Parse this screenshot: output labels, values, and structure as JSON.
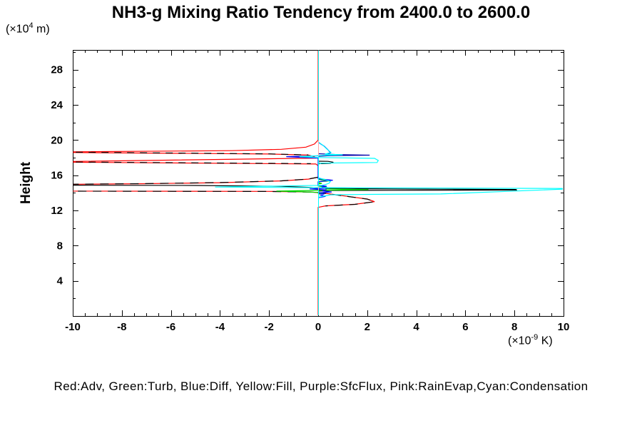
{
  "header": {
    "title": "NH3-g Mixing Ratio Tendency from 2400.0 to 2600.0"
  },
  "y_axis_unit": {
    "prefix": "(×10",
    "sup": "4",
    "suffix": " m)"
  },
  "x_axis_unit": {
    "prefix": "(×10",
    "sup": "-9",
    "suffix": " K)"
  },
  "legend": {
    "text": "Red:Adv, Green:Turb, Blue:Diff, Yellow:Fill, Purple:SfcFlux, Pink:RainEvap,Cyan:Condensation",
    "entries": [
      {
        "color_name": "Red",
        "color": "#ff0000",
        "label": "Adv"
      },
      {
        "color_name": "Green",
        "color": "#00d800",
        "label": "Turb"
      },
      {
        "color_name": "Blue",
        "color": "#0000ff",
        "label": "Diff"
      },
      {
        "color_name": "Yellow",
        "color": "#ffff00",
        "label": "Fill"
      },
      {
        "color_name": "Purple",
        "color": "#a000c8",
        "label": "SfcFlux"
      },
      {
        "color_name": "Pink",
        "color": "#ffa8a8",
        "label": "RainEvap"
      },
      {
        "color_name": "Cyan",
        "color": "#00ffff",
        "label": "Condensation"
      }
    ]
  },
  "chart_data": {
    "type": "line",
    "title": "NH3-g Mixing Ratio Tendency from 2400.0 to 2600.0",
    "xlabel": "(x10^-9 K)",
    "ylabel": "Height (x10^4 m)",
    "x_axis": {
      "min": -10,
      "max": 10,
      "minor_step": 0.5,
      "major_tick_values": [
        -10,
        -8,
        -6,
        -4,
        -2,
        0,
        2,
        4,
        6,
        8,
        10
      ],
      "tick_labels": [
        "-10",
        "-8",
        "-6",
        "-4",
        "-2",
        "0",
        "2",
        "4",
        "6",
        "8",
        "10"
      ]
    },
    "y_axis": {
      "min": 0,
      "max": 30.25,
      "minor_step": 2,
      "label": "Height",
      "major_tick_values": [
        4,
        8,
        12,
        16,
        20,
        24,
        28
      ],
      "tick_labels": [
        "4",
        "8",
        "12",
        "16",
        "20",
        "24",
        "28"
      ]
    },
    "zero_line": {
      "x": 0,
      "color": "#00ffff"
    },
    "grid": false,
    "series": [
      {
        "name": "adv-red",
        "color": "#ff0000",
        "points": [
          [
            0,
            30.2
          ],
          [
            0,
            20.0
          ],
          [
            -0.15,
            19.55
          ],
          [
            -0.5,
            19.2
          ],
          [
            -1.5,
            18.95
          ],
          [
            -3.5,
            18.8
          ],
          [
            -10.4,
            18.66
          ],
          [
            -10.4,
            18.6
          ],
          [
            -2.0,
            18.42
          ],
          [
            -0.4,
            18.3
          ],
          [
            -0.15,
            18.1
          ],
          [
            -0.1,
            17.95
          ],
          [
            -10.4,
            17.56
          ],
          [
            -10.4,
            17.49
          ],
          [
            -0.1,
            17.28
          ],
          [
            0,
            17.1
          ],
          [
            0,
            15.78
          ],
          [
            -0.4,
            15.56
          ],
          [
            -1.5,
            15.36
          ],
          [
            -4,
            15.16
          ],
          [
            -7,
            15.04
          ],
          [
            -10.4,
            14.97
          ],
          [
            -10.4,
            14.2
          ],
          [
            -2,
            14.17
          ],
          [
            -0.3,
            14.1
          ],
          [
            0.3,
            13.95
          ],
          [
            1.2,
            13.6
          ],
          [
            2.0,
            13.3
          ],
          [
            2.3,
            13.0
          ],
          [
            1.5,
            12.7
          ],
          [
            0.3,
            12.52
          ],
          [
            0,
            12.35
          ],
          [
            0,
            0.1
          ]
        ]
      },
      {
        "name": "net-black-dash-a",
        "color": "#000000",
        "dash": "10 8",
        "points": [
          [
            -10.4,
            18.64
          ],
          [
            -2.0,
            18.43
          ],
          [
            -0.4,
            18.31
          ]
        ]
      },
      {
        "name": "net-black-dash-b",
        "color": "#000000",
        "dash": "10 8",
        "points": [
          [
            -10.4,
            17.52
          ],
          [
            -0.3,
            17.32
          ]
        ]
      },
      {
        "name": "net-black-dash-c",
        "color": "#000000",
        "dash": "12 9",
        "points": [
          [
            0,
            15.78
          ],
          [
            -0.4,
            15.57
          ],
          [
            -1.5,
            15.37
          ],
          [
            -4,
            15.17
          ],
          [
            -7,
            15.05
          ],
          [
            -10.4,
            14.98
          ]
        ]
      },
      {
        "name": "net-black-dash-d",
        "color": "#000000",
        "dash": "12 9",
        "points": [
          [
            -10.4,
            14.19
          ],
          [
            -2,
            14.16
          ],
          [
            -0.3,
            14.09
          ],
          [
            0.3,
            13.94
          ],
          [
            1.2,
            13.59
          ],
          [
            2.0,
            13.29
          ],
          [
            2.3,
            12.99
          ],
          [
            1.5,
            12.69
          ],
          [
            0.3,
            12.51
          ]
        ]
      },
      {
        "name": "net-black-left",
        "color": "#000000",
        "points": [
          [
            -10.4,
            14.87
          ],
          [
            -5,
            14.84
          ],
          [
            -1.5,
            14.74
          ],
          [
            -0.3,
            14.62
          ],
          [
            0,
            14.55
          ]
        ]
      },
      {
        "name": "net-black-spike",
        "color": "#000000",
        "points": [
          [
            0,
            14.55
          ],
          [
            2,
            14.47
          ],
          [
            5,
            14.42
          ],
          [
            8.05,
            14.39
          ],
          [
            8.1,
            14.32
          ],
          [
            3,
            14.29
          ],
          [
            0.5,
            14.27
          ],
          [
            0,
            14.2
          ]
        ]
      },
      {
        "name": "net-black-loop",
        "color": "#000000",
        "points": [
          [
            0,
            17.6
          ],
          [
            0.4,
            17.58
          ],
          [
            0.62,
            17.48
          ],
          [
            0.5,
            17.36
          ],
          [
            0.15,
            17.32
          ],
          [
            0,
            17.38
          ]
        ]
      },
      {
        "name": "turb-green",
        "color": "#00d800",
        "points": [
          [
            0,
            15.52
          ],
          [
            0.35,
            15.44
          ],
          [
            0.5,
            15.37
          ],
          [
            0.2,
            15.3
          ],
          [
            0,
            15.26
          ],
          [
            0,
            15.15
          ],
          [
            0.15,
            15.08
          ],
          [
            0,
            15.0
          ],
          [
            0,
            14.78
          ],
          [
            0.4,
            14.6
          ],
          [
            0.3,
            14.45
          ],
          [
            2.05,
            14.36
          ],
          [
            0.5,
            14.3
          ],
          [
            -0.2,
            14.27
          ],
          [
            -1.7,
            14.2
          ],
          [
            -0.6,
            14.12
          ],
          [
            0,
            14.05
          ],
          [
            0.2,
            13.95
          ],
          [
            0,
            13.85
          ]
        ]
      },
      {
        "name": "diff-blue",
        "color": "#0000ff",
        "points": [
          [
            0,
            19.75
          ],
          [
            0.25,
            19.3
          ],
          [
            0.4,
            18.9
          ],
          [
            0.5,
            18.55
          ],
          [
            0.3,
            18.35
          ],
          [
            1.35,
            18.3
          ],
          [
            0.2,
            18.22
          ],
          [
            -1.3,
            18.12
          ],
          [
            -0.6,
            18.02
          ],
          [
            0,
            17.95
          ],
          [
            0,
            15.6
          ],
          [
            0.3,
            15.52
          ],
          [
            0.6,
            15.43
          ],
          [
            0.15,
            15.33
          ],
          [
            0,
            15.25
          ],
          [
            0,
            14.85
          ],
          [
            0.35,
            14.75
          ],
          [
            0.15,
            14.68
          ],
          [
            0.45,
            14.55
          ],
          [
            -0.35,
            14.45
          ],
          [
            0.3,
            14.35
          ],
          [
            0.2,
            14.2
          ],
          [
            0.55,
            14.1
          ],
          [
            0,
            14.0
          ],
          [
            0.25,
            13.88
          ],
          [
            0.1,
            13.75
          ],
          [
            0.3,
            13.6
          ],
          [
            0,
            13.45
          ]
        ]
      },
      {
        "name": "diff-blue-dark",
        "color": "#0000a8",
        "points": [
          [
            0,
            18.45
          ],
          [
            0.8,
            18.35
          ],
          [
            2.1,
            18.29
          ],
          [
            0.5,
            18.23
          ],
          [
            0,
            18.16
          ]
        ]
      },
      {
        "name": "cond-cyan-baseline",
        "color": "#00ffff",
        "crisp": true,
        "points": [
          [
            0,
            0.1
          ],
          [
            0,
            30.2
          ]
        ]
      },
      {
        "name": "cond-cyan-upper",
        "color": "#00ffff",
        "points": [
          [
            0,
            19.8
          ],
          [
            0.2,
            19.4
          ],
          [
            0.35,
            19.0
          ],
          [
            0.52,
            18.6
          ],
          [
            0.28,
            18.4
          ],
          [
            1.0,
            18.33
          ],
          [
            0.2,
            18.26
          ],
          [
            -0.76,
            18.12
          ],
          [
            0,
            18.02
          ],
          [
            2.3,
            17.92
          ],
          [
            2.45,
            17.68
          ],
          [
            2.4,
            17.45
          ],
          [
            0.1,
            17.38
          ],
          [
            0,
            17.2
          ]
        ]
      },
      {
        "name": "cond-cyan-main",
        "color": "#00ffff",
        "points": [
          [
            0,
            15.72
          ],
          [
            0.3,
            15.5
          ],
          [
            0.5,
            15.3
          ],
          [
            0.45,
            15.1
          ],
          [
            0.3,
            14.95
          ],
          [
            0.15,
            14.86
          ],
          [
            -4.2,
            14.66
          ],
          [
            -0.5,
            14.6
          ],
          [
            3,
            14.56
          ],
          [
            9.95,
            14.5
          ],
          [
            9.95,
            14.42
          ],
          [
            5,
            13.88
          ],
          [
            2,
            13.83
          ],
          [
            0.5,
            13.78
          ],
          [
            0.2,
            13.62
          ],
          [
            0,
            13.5
          ]
        ]
      },
      {
        "name": "rainevap-pink-upper",
        "color": "#ffa8a8",
        "crisp": true,
        "points": [
          [
            0,
            19.95
          ],
          [
            0,
            18.2
          ]
        ]
      },
      {
        "name": "rainevap-pink-lower",
        "color": "#ffa8a8",
        "crisp": true,
        "points": [
          [
            0,
            14.7
          ],
          [
            0,
            14.32
          ]
        ]
      }
    ]
  }
}
